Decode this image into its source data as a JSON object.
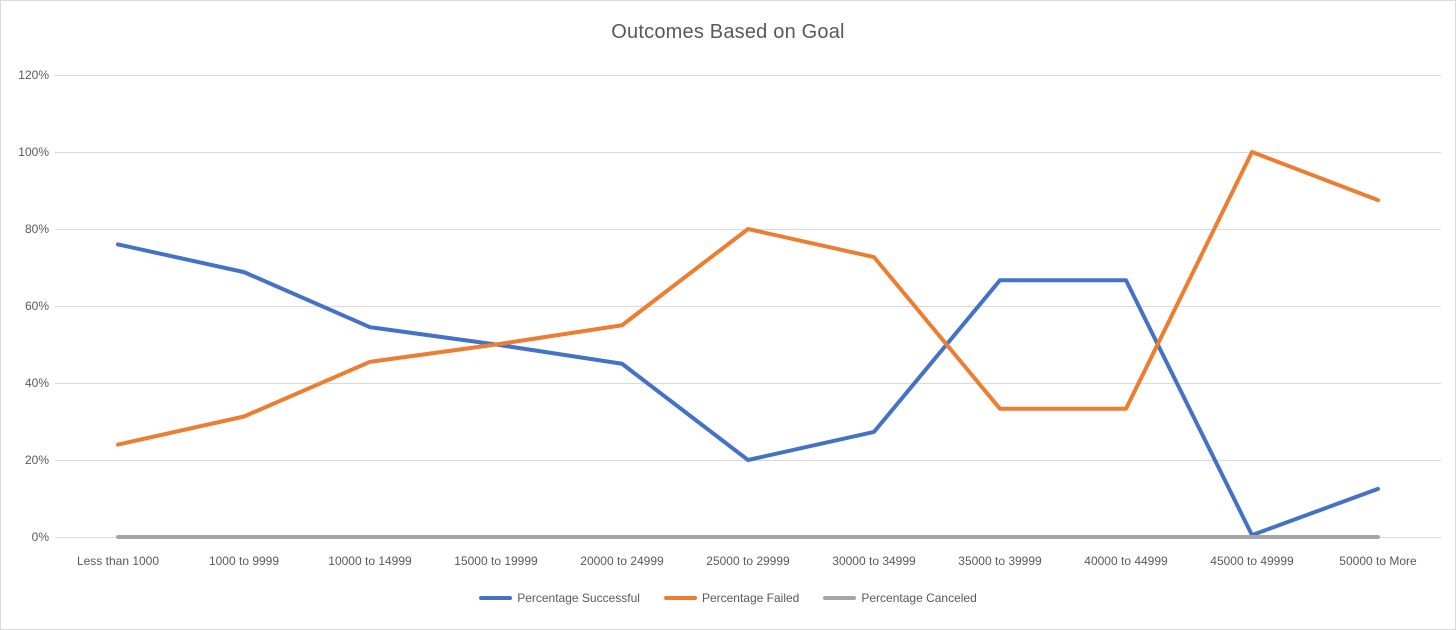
{
  "chart_data": {
    "type": "line",
    "title": "Outcomes Based on Goal",
    "xlabel": "",
    "ylabel": "",
    "categories": [
      "Less than 1000",
      "1000 to 9999",
      "10000 to 14999",
      "15000 to 19999",
      "20000 to 24999",
      "25000 to 29999",
      "30000 to 34999",
      "35000 to 39999",
      "40000 to 44999",
      "45000 to 49999",
      "50000 to More"
    ],
    "series": [
      {
        "name": "Percentage Successful",
        "color": "#4472C4",
        "values": [
          76,
          68.8,
          54.5,
          50,
          45,
          20,
          27.3,
          66.7,
          66.7,
          0.5,
          12.5
        ]
      },
      {
        "name": "Percentage Failed",
        "color": "#ED7D31",
        "values": [
          24,
          31.3,
          45.5,
          50,
          55,
          80,
          72.7,
          33.3,
          33.3,
          100,
          87.5
        ]
      },
      {
        "name": "Percentage Canceled",
        "color": "#A5A5A5",
        "values": [
          0,
          0,
          0,
          0,
          0,
          0,
          0,
          0,
          0,
          0,
          0
        ]
      }
    ],
    "ylim": [
      0,
      120
    ],
    "ytick_values": [
      0,
      20,
      40,
      60,
      80,
      100,
      120
    ],
    "ytick_labels": [
      "0%",
      "20%",
      "40%",
      "60%",
      "80%",
      "100%",
      "120%"
    ],
    "grid": true,
    "legend_position": "bottom",
    "gridline_color": "#D9D9D9",
    "text_color": "#595959",
    "background_color": "#FFFFFF"
  }
}
